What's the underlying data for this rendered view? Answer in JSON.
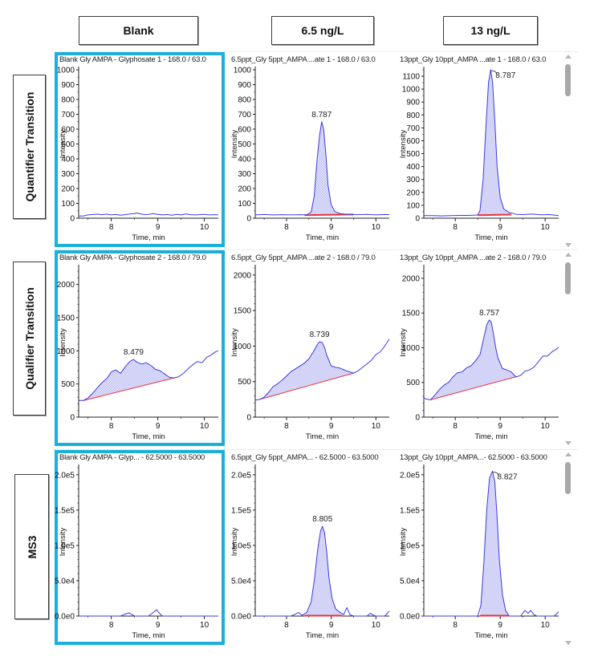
{
  "column_headers": [
    "Blank",
    "6.5 ng/L",
    "13 ng/L"
  ],
  "row_labels": [
    "Quantifier Transition",
    "Qualifier Transition",
    "MS3"
  ],
  "colors": {
    "trace": "#3a3ae6",
    "fill": "#a7a7f0",
    "baseline": "#e8323c",
    "selection": "#1bb0dc",
    "scroll_thumb": "#a8a8a8"
  },
  "scrollbars": [
    {
      "row": 0,
      "icon_up": "scroll-up-arrow-icon",
      "icon_down": "scroll-down-arrow-icon"
    },
    {
      "row": 1,
      "icon_up": "scroll-up-arrow-icon",
      "icon_down": "scroll-down-arrow-icon"
    },
    {
      "row": 2,
      "icon_up": "scroll-up-arrow-icon",
      "icon_down": "scroll-down-arrow-icon"
    }
  ],
  "chart_data": [
    {
      "type": "line",
      "row": 0,
      "col": 0,
      "selected": true,
      "title": "Blank Gly AMPA - Glyphosate 1 - 168.0 / 63.0",
      "xlabel": "Time, min",
      "ylabel": "Intensity",
      "xlim": [
        7.3,
        10.3
      ],
      "ylim": [
        0,
        1000
      ],
      "xticks": [
        8,
        9,
        10
      ],
      "xtick_labels": [
        "8",
        "9",
        "10"
      ],
      "yticks": [
        0,
        100,
        200,
        300,
        400,
        500,
        600,
        700,
        800,
        900,
        1000
      ],
      "ytick_labels": [
        "0",
        "100",
        "200",
        "300",
        "400",
        "500",
        "600",
        "700",
        "800",
        "900",
        "1000"
      ],
      "x": [
        7.3,
        7.4,
        7.5,
        7.6,
        7.7,
        7.8,
        7.9,
        8.0,
        8.1,
        8.2,
        8.3,
        8.4,
        8.5,
        8.55,
        8.6,
        8.7,
        8.8,
        8.9,
        9.0,
        9.1,
        9.2,
        9.3,
        9.4,
        9.5,
        9.6,
        9.7,
        9.8,
        9.9,
        10.0,
        10.1,
        10.2,
        10.3
      ],
      "y": [
        15,
        15,
        22,
        25,
        27,
        24,
        27,
        22,
        25,
        20,
        24,
        28,
        30,
        35,
        30,
        25,
        26,
        30,
        26,
        22,
        25,
        20,
        26,
        22,
        28,
        24,
        22,
        24,
        26,
        22,
        24,
        22
      ],
      "peak": null
    },
    {
      "type": "line",
      "row": 0,
      "col": 1,
      "selected": false,
      "title": "6.5ppt_Gly 5ppt_AMPA ...ate 1 - 168.0 / 63.0",
      "xlabel": "Time, min",
      "ylabel": "Intensity",
      "xlim": [
        7.3,
        10.3
      ],
      "ylim": [
        0,
        1000
      ],
      "xticks": [
        8,
        9,
        10
      ],
      "xtick_labels": [
        "8",
        "9",
        "10"
      ],
      "yticks": [
        0,
        100,
        200,
        300,
        400,
        500,
        600,
        700,
        800,
        900,
        1000
      ],
      "ytick_labels": [
        "0",
        "100",
        "200",
        "300",
        "400",
        "500",
        "600",
        "700",
        "800",
        "900",
        "1000"
      ],
      "x": [
        7.3,
        7.5,
        7.7,
        7.9,
        8.1,
        8.3,
        8.45,
        8.55,
        8.62,
        8.68,
        8.74,
        8.787,
        8.83,
        8.88,
        8.93,
        9.0,
        9.08,
        9.2,
        9.4,
        9.6,
        9.8,
        10.0,
        10.2,
        10.3
      ],
      "y": [
        22,
        25,
        22,
        24,
        22,
        24,
        22,
        40,
        150,
        380,
        560,
        650,
        600,
        430,
        220,
        90,
        45,
        30,
        26,
        24,
        26,
        22,
        25,
        24
      ],
      "baseline": [
        [
          8.4,
          18
        ],
        [
          9.5,
          22
        ]
      ],
      "peak": {
        "x": 8.787,
        "y": 650,
        "label": "8.787",
        "range": [
          8.45,
          9.5
        ]
      }
    },
    {
      "type": "line",
      "row": 0,
      "col": 2,
      "selected": false,
      "title": "13ppt_Gly 10ppt_AMPA ...ate 1 - 168.0 / 63.0",
      "xlabel": "Time, min",
      "ylabel": "Intensity",
      "xlim": [
        7.3,
        10.3
      ],
      "ylim": [
        0,
        1150
      ],
      "xticks": [
        8,
        9,
        10
      ],
      "xtick_labels": [
        "8",
        "9",
        "10"
      ],
      "yticks": [
        0,
        100,
        200,
        300,
        400,
        500,
        600,
        700,
        800,
        900,
        1000,
        1100
      ],
      "ytick_labels": [
        "0",
        "100",
        "200",
        "300",
        "400",
        "500",
        "600",
        "700",
        "800",
        "900",
        "1000",
        "1100"
      ],
      "x": [
        7.3,
        7.5,
        7.7,
        7.9,
        8.1,
        8.3,
        8.5,
        8.55,
        8.62,
        8.68,
        8.74,
        8.787,
        8.83,
        8.88,
        8.93,
        9.0,
        9.08,
        9.2,
        9.35,
        9.5,
        9.7,
        9.9,
        10.1,
        10.3
      ],
      "y": [
        20,
        20,
        18,
        20,
        22,
        22,
        25,
        60,
        300,
        700,
        1050,
        1150,
        1050,
        750,
        400,
        160,
        70,
        45,
        30,
        28,
        32,
        26,
        28,
        20
      ],
      "baseline": [
        [
          8.5,
          20
        ],
        [
          9.25,
          25
        ]
      ],
      "peak": {
        "x": 8.787,
        "y": 1150,
        "label": "8.787",
        "range": [
          8.5,
          9.3
        ],
        "label_offset": "right"
      }
    },
    {
      "type": "area",
      "row": 1,
      "col": 0,
      "selected": true,
      "title": "Blank Gly AMPA - Glyphosate 2 - 168.0 / 79.0",
      "xlabel": "Time, min",
      "ylabel": "Intensity",
      "xlim": [
        7.3,
        10.3
      ],
      "ylim": [
        0,
        2250
      ],
      "xticks": [
        8,
        9,
        10
      ],
      "xtick_labels": [
        "8",
        "9",
        "10"
      ],
      "yticks": [
        0,
        500,
        1000,
        1500,
        2000
      ],
      "ytick_labels": [
        "0",
        "500",
        "1000",
        "1500",
        "2000"
      ],
      "x": [
        7.3,
        7.4,
        7.5,
        7.6,
        7.7,
        7.8,
        7.9,
        8.0,
        8.05,
        8.1,
        8.2,
        8.3,
        8.4,
        8.479,
        8.55,
        8.65,
        8.75,
        8.85,
        8.95,
        9.05,
        9.15,
        9.25,
        9.35,
        9.45,
        9.55,
        9.65,
        9.75,
        9.85,
        9.95,
        10.05,
        10.15,
        10.25,
        10.3
      ],
      "y": [
        250,
        250,
        290,
        360,
        440,
        520,
        580,
        680,
        700,
        710,
        660,
        760,
        840,
        870,
        830,
        800,
        820,
        780,
        720,
        700,
        650,
        600,
        590,
        610,
        660,
        730,
        790,
        840,
        820,
        900,
        940,
        990,
        1000
      ],
      "baseline": [
        [
          7.4,
          250
        ],
        [
          9.4,
          600
        ]
      ],
      "peak": {
        "x": 8.479,
        "y": 870,
        "label": "8.479",
        "range": [
          7.4,
          9.4
        ]
      }
    },
    {
      "type": "area",
      "row": 1,
      "col": 1,
      "selected": false,
      "title": "6.5ppt_Gly 5ppt_AMPA ...ate 2 - 168.0 / 79.0",
      "xlabel": "Time, min",
      "ylabel": "Intensity",
      "xlim": [
        7.3,
        10.3
      ],
      "ylim": [
        0,
        2100
      ],
      "xticks": [
        8,
        9,
        10
      ],
      "xtick_labels": [
        "8",
        "9",
        "10"
      ],
      "yticks": [
        0,
        500,
        1000,
        1500,
        2000
      ],
      "ytick_labels": [
        "0",
        "500",
        "1000",
        "1500",
        "2000"
      ],
      "x": [
        7.3,
        7.4,
        7.5,
        7.6,
        7.7,
        7.8,
        7.9,
        8.0,
        8.1,
        8.2,
        8.3,
        8.4,
        8.5,
        8.6,
        8.7,
        8.739,
        8.8,
        8.85,
        8.9,
        9.0,
        9.1,
        9.2,
        9.3,
        9.4,
        9.5,
        9.6,
        9.7,
        9.8,
        9.9,
        10.0,
        10.1,
        10.2,
        10.3
      ],
      "y": [
        240,
        250,
        280,
        350,
        430,
        470,
        520,
        580,
        640,
        680,
        720,
        760,
        820,
        920,
        1030,
        1060,
        1050,
        980,
        870,
        720,
        700,
        690,
        660,
        640,
        620,
        650,
        700,
        750,
        800,
        880,
        920,
        1000,
        1100
      ],
      "baseline": [
        [
          7.4,
          250
        ],
        [
          9.5,
          620
        ]
      ],
      "peak": {
        "x": 8.739,
        "y": 1060,
        "label": "8.739",
        "range": [
          7.4,
          9.5
        ]
      }
    },
    {
      "type": "area",
      "row": 1,
      "col": 2,
      "selected": false,
      "title": "13ppt_Gly 10ppt_AMPA ...ate 2 - 168.0 / 79.0",
      "xlabel": "Time, min",
      "ylabel": "Intensity",
      "xlim": [
        7.3,
        10.3
      ],
      "ylim": [
        0,
        2150
      ],
      "xticks": [
        8,
        9,
        10
      ],
      "xtick_labels": [
        "8",
        "9",
        "10"
      ],
      "yticks": [
        0,
        500,
        1000,
        1500,
        2000
      ],
      "ytick_labels": [
        "0",
        "500",
        "1000",
        "1500",
        "2000"
      ],
      "x": [
        7.3,
        7.35,
        7.45,
        7.55,
        7.65,
        7.75,
        7.85,
        7.95,
        8.05,
        8.15,
        8.25,
        8.35,
        8.45,
        8.55,
        8.62,
        8.7,
        8.757,
        8.8,
        8.85,
        8.9,
        8.95,
        9.05,
        9.15,
        9.25,
        9.35,
        9.45,
        9.55,
        9.65,
        9.75,
        9.85,
        9.95,
        10.05,
        10.15,
        10.25,
        10.3
      ],
      "y": [
        280,
        260,
        250,
        320,
        400,
        460,
        500,
        580,
        640,
        650,
        710,
        740,
        810,
        900,
        1100,
        1330,
        1400,
        1370,
        1200,
        1000,
        850,
        700,
        680,
        650,
        580,
        600,
        660,
        680,
        720,
        800,
        880,
        880,
        940,
        980,
        1010
      ],
      "baseline": [
        [
          7.45,
          250
        ],
        [
          9.4,
          590
        ]
      ],
      "peak": {
        "x": 8.757,
        "y": 1400,
        "label": "8.757",
        "range": [
          7.45,
          9.4
        ]
      }
    },
    {
      "type": "line",
      "row": 2,
      "col": 0,
      "selected": true,
      "title": "Blank Gly AMPA - Glyp... - 62.5000 - 63.5000",
      "xlabel": "Time, min",
      "ylabel": "Intensity",
      "xlim": [
        7.3,
        10.3
      ],
      "ylim": [
        0,
        210000
      ],
      "xticks": [
        8,
        9,
        10
      ],
      "xtick_labels": [
        "8",
        "9",
        "10"
      ],
      "yticks": [
        0,
        50000,
        100000,
        150000,
        200000
      ],
      "ytick_labels": [
        "0.0e0",
        "5.0e4",
        "1.0e5",
        "1.5e5",
        "2.0e5"
      ],
      "x": [
        7.3,
        8.2,
        8.3,
        8.38,
        8.45,
        8.5,
        8.8,
        8.9,
        8.97,
        9.05,
        9.1,
        10.3
      ],
      "y": [
        0,
        0,
        3000,
        4500,
        2000,
        0,
        0,
        5000,
        9000,
        3000,
        0,
        0
      ],
      "peak": null
    },
    {
      "type": "line",
      "row": 2,
      "col": 1,
      "selected": false,
      "title": "6.5ppt_Gly 5ppt_AMPA... - 62.5000 - 63.5000",
      "xlabel": "Time, min",
      "ylabel": "Intensity",
      "xlim": [
        7.3,
        10.3
      ],
      "ylim": [
        0,
        210000
      ],
      "xticks": [
        8,
        9,
        10
      ],
      "xtick_labels": [
        "8",
        "9",
        "10"
      ],
      "yticks": [
        0,
        50000,
        100000,
        150000,
        200000
      ],
      "ytick_labels": [
        "0.0e0",
        "5.0e4",
        "1.0e5",
        "1.5e5",
        "2.0e5"
      ],
      "x": [
        7.3,
        8.1,
        8.2,
        8.27,
        8.35,
        8.45,
        8.55,
        8.62,
        8.7,
        8.76,
        8.805,
        8.85,
        8.9,
        8.95,
        9.02,
        9.1,
        9.2,
        9.28,
        9.35,
        9.42,
        9.5,
        9.8,
        9.88,
        9.95,
        10.0,
        10.2,
        10.3
      ],
      "y": [
        0,
        0,
        3000,
        5000,
        1000,
        5000,
        20000,
        50000,
        95000,
        120000,
        127000,
        118000,
        90000,
        55000,
        25000,
        10000,
        5000,
        2000,
        12000,
        2000,
        0,
        0,
        4000,
        1000,
        0,
        0,
        7000
      ],
      "baseline": [
        [
          8.4,
          0
        ],
        [
          9.25,
          0
        ]
      ],
      "peak": {
        "x": 8.805,
        "y": 127000,
        "label": "8.805",
        "range": [
          8.4,
          9.25
        ]
      }
    },
    {
      "type": "line",
      "row": 2,
      "col": 2,
      "selected": false,
      "title": "13ppt_Gly 10ppt_AMPA...- 62.5000 - 63.5000",
      "xlabel": "Time, min",
      "ylabel": "Intensity",
      "xlim": [
        7.3,
        10.3
      ],
      "ylim": [
        0,
        210000
      ],
      "xticks": [
        8,
        9,
        10
      ],
      "xtick_labels": [
        "8",
        "9",
        "10"
      ],
      "yticks": [
        0,
        50000,
        100000,
        150000,
        200000
      ],
      "ytick_labels": [
        "0.0e0",
        "5.0e4",
        "1.0e5",
        "1.5e5",
        "2.0e5"
      ],
      "x": [
        7.3,
        8.5,
        8.57,
        8.63,
        8.7,
        8.76,
        8.827,
        8.88,
        8.93,
        8.98,
        9.05,
        9.12,
        9.2,
        9.45,
        9.55,
        9.62,
        9.68,
        9.75,
        9.82,
        9.9,
        10.2,
        10.3
      ],
      "y": [
        0,
        0,
        15000,
        70000,
        150000,
        195000,
        205000,
        190000,
        140000,
        80000,
        30000,
        8000,
        0,
        0,
        8000,
        4000,
        8000,
        2000,
        0,
        0,
        0,
        6000
      ],
      "baseline": [
        [
          8.55,
          0
        ],
        [
          9.2,
          0
        ]
      ],
      "peak": {
        "x": 8.827,
        "y": 205000,
        "label": "8.827",
        "range": [
          8.55,
          9.2
        ],
        "label_offset": "right"
      }
    }
  ]
}
